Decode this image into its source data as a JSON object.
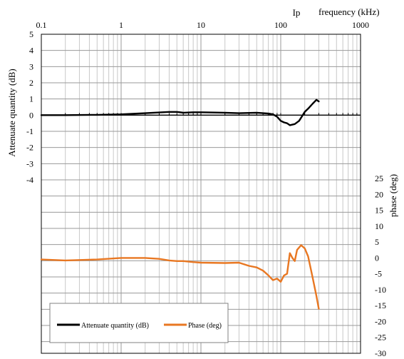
{
  "chart_data": {
    "type": "line",
    "x_scale": "log",
    "xlim": [
      0.1,
      1000
    ],
    "x_tick_labels": [
      "0.1",
      "1",
      "10",
      "100",
      "1000"
    ],
    "xlabel": "frequency (kHz)",
    "ylabel_left": "Attenuate quantity (dB)",
    "ylim_left": [
      -4,
      5
    ],
    "y_tick_labels_left": [
      "5",
      "4",
      "3",
      "2",
      "1",
      "0",
      "-1",
      "-2",
      "-3",
      "-4"
    ],
    "ylabel_right": "phase (deg)",
    "ylim_right": [
      -30,
      25
    ],
    "y_tick_labels_right": [
      "25",
      "20",
      "15",
      "10",
      "5",
      "0",
      "-5",
      "-10",
      "-15",
      "-20",
      "-25",
      "-30"
    ],
    "corner_text": "Ip",
    "grid": true,
    "legend_position": "bottom-left",
    "series": [
      {
        "name": "Attenuate quantity (dB)",
        "axis": "left",
        "color": "#000000",
        "x": [
          0.1,
          0.2,
          0.5,
          1,
          2,
          4,
          5,
          6,
          8,
          10,
          20,
          30,
          50,
          70,
          80,
          90,
          100,
          110,
          120,
          130,
          150,
          170,
          200,
          220,
          250,
          280,
          300
        ],
        "y": [
          0.0,
          0.0,
          0.02,
          0.05,
          0.12,
          0.2,
          0.2,
          0.15,
          0.18,
          0.18,
          0.15,
          0.12,
          0.15,
          0.1,
          0.05,
          -0.1,
          -0.35,
          -0.45,
          -0.5,
          -0.62,
          -0.55,
          -0.35,
          0.2,
          0.4,
          0.7,
          0.95,
          0.85
        ]
      },
      {
        "name": "Phase (deg)",
        "axis": "right",
        "color": "#E87722",
        "x": [
          0.1,
          0.2,
          0.5,
          1,
          2,
          3,
          4,
          5,
          6,
          8,
          10,
          20,
          30,
          40,
          50,
          60,
          70,
          80,
          90,
          100,
          110,
          120,
          130,
          140,
          150,
          160,
          180,
          200,
          220,
          250,
          280,
          300
        ],
        "y": [
          -0.5,
          -0.8,
          -0.5,
          0.0,
          0.0,
          -0.3,
          -0.8,
          -1.0,
          -1.0,
          -1.3,
          -1.5,
          -1.6,
          -1.5,
          -2.5,
          -3.0,
          -4.0,
          -5.5,
          -7.0,
          -6.5,
          -7.5,
          -5.5,
          -5.0,
          1.5,
          0.0,
          -1.0,
          2.5,
          4.0,
          3.0,
          0.5,
          -6.0,
          -12.0,
          -16.0
        ]
      }
    ]
  }
}
